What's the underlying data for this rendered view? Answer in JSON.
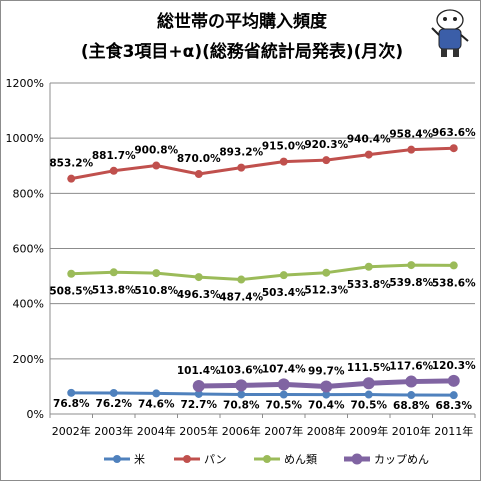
{
  "chart_data": {
    "type": "line",
    "title_lines": [
      "総世帯の平均購入頻度",
      "(主食3項目+α)(総務省統計局発表)(月次)"
    ],
    "categories": [
      "2002年",
      "2003年",
      "2004年",
      "2005年",
      "2006年",
      "2007年",
      "2008年",
      "2009年",
      "2010年",
      "2011年"
    ],
    "ylim": [
      0,
      1200
    ],
    "yticks": [
      "0%",
      "200%",
      "400%",
      "600%",
      "800%",
      "1000%",
      "1200%"
    ],
    "grid": true,
    "legend_position": "bottom",
    "series": [
      {
        "name": "米",
        "color": "#4f81bd",
        "values": [
          76.8,
          76.2,
          74.6,
          72.7,
          70.8,
          70.5,
          70.4,
          70.5,
          68.8,
          68.3
        ],
        "labels": [
          "76.8%",
          "76.2%",
          "74.6%",
          "72.7%",
          "70.8%",
          "70.5%",
          "70.4%",
          "70.5%",
          "68.8%",
          "68.3%"
        ]
      },
      {
        "name": "パン",
        "color": "#c0504d",
        "values": [
          853.2,
          881.7,
          900.8,
          870.0,
          893.2,
          915.0,
          920.3,
          940.4,
          958.4,
          963.6
        ],
        "labels": [
          "853.2%",
          "881.7%",
          "900.8%",
          "870.0%",
          "893.2%",
          "915.0%",
          "920.3%",
          "940.4%",
          "958.4%",
          "963.6%"
        ]
      },
      {
        "name": "めん類",
        "color": "#9bbb59",
        "values": [
          508.5,
          513.8,
          510.8,
          496.3,
          487.4,
          503.4,
          512.3,
          533.8,
          539.8,
          538.6
        ],
        "labels": [
          "508.5%",
          "513.8%",
          "510.8%",
          "496.3%",
          "487.4%",
          "503.4%",
          "512.3%",
          "533.8%",
          "539.8%",
          "538.6%"
        ]
      },
      {
        "name": "カップめん",
        "color": "#8064a2",
        "values": [
          null,
          null,
          null,
          101.4,
          103.6,
          107.4,
          99.7,
          111.5,
          117.6,
          120.3
        ],
        "labels": [
          null,
          null,
          null,
          "101.4%",
          "103.6%",
          "107.4%",
          "99.7%",
          "111.5%",
          "117.6%",
          "120.3%"
        ]
      }
    ]
  },
  "mascot": {
    "icon": "character-mascot-icon"
  }
}
